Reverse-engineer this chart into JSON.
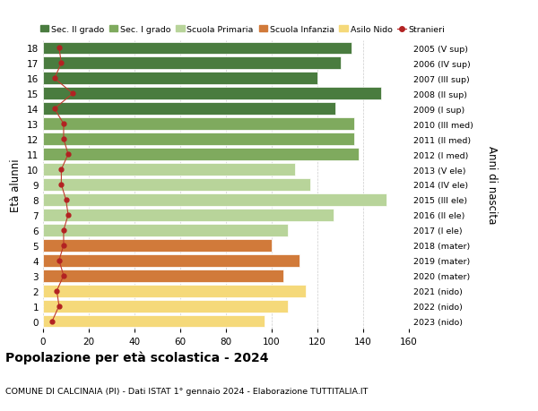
{
  "ages": [
    18,
    17,
    16,
    15,
    14,
    13,
    12,
    11,
    10,
    9,
    8,
    7,
    6,
    5,
    4,
    3,
    2,
    1,
    0
  ],
  "bar_values": [
    135,
    130,
    120,
    148,
    128,
    136,
    136,
    138,
    110,
    117,
    150,
    127,
    107,
    100,
    112,
    105,
    115,
    107,
    97
  ],
  "bar_colors": [
    "#4a7c3f",
    "#4a7c3f",
    "#4a7c3f",
    "#4a7c3f",
    "#4a7c3f",
    "#7faa5e",
    "#7faa5e",
    "#7faa5e",
    "#b8d49a",
    "#b8d49a",
    "#b8d49a",
    "#b8d49a",
    "#b8d49a",
    "#d17a3a",
    "#d17a3a",
    "#d17a3a",
    "#f5d97a",
    "#f5d97a",
    "#f5d97a"
  ],
  "stranieri_values": [
    7,
    8,
    5,
    13,
    5,
    9,
    9,
    11,
    8,
    8,
    10,
    11,
    9,
    9,
    7,
    9,
    6,
    7,
    4
  ],
  "right_labels": [
    "2005 (V sup)",
    "2006 (IV sup)",
    "2007 (III sup)",
    "2008 (II sup)",
    "2009 (I sup)",
    "2010 (III med)",
    "2011 (II med)",
    "2012 (I med)",
    "2013 (V ele)",
    "2014 (IV ele)",
    "2015 (III ele)",
    "2016 (II ele)",
    "2017 (I ele)",
    "2018 (mater)",
    "2019 (mater)",
    "2020 (mater)",
    "2021 (nido)",
    "2022 (nido)",
    "2023 (nido)"
  ],
  "legend_labels": [
    "Sec. II grado",
    "Sec. I grado",
    "Scuola Primaria",
    "Scuola Infanzia",
    "Asilo Nido",
    "Stranieri"
  ],
  "legend_colors": [
    "#4a7c3f",
    "#7faa5e",
    "#b8d49a",
    "#d17a3a",
    "#f5d97a",
    "#b22222"
  ],
  "ylabel": "Età alunni",
  "right_ylabel": "Anni di nascita",
  "title": "Popolazione per età scolastica - 2024",
  "subtitle": "COMUNE DI CALCINAIA (PI) - Dati ISTAT 1° gennaio 2024 - Elaborazione TUTTITALIA.IT",
  "xlim": [
    0,
    160
  ],
  "xticks": [
    0,
    20,
    40,
    60,
    80,
    100,
    120,
    140,
    160
  ],
  "background_color": "#ffffff",
  "grid_color": "#cccccc",
  "stranieri_color": "#b22222",
  "stranieri_line_color": "#c0392b"
}
